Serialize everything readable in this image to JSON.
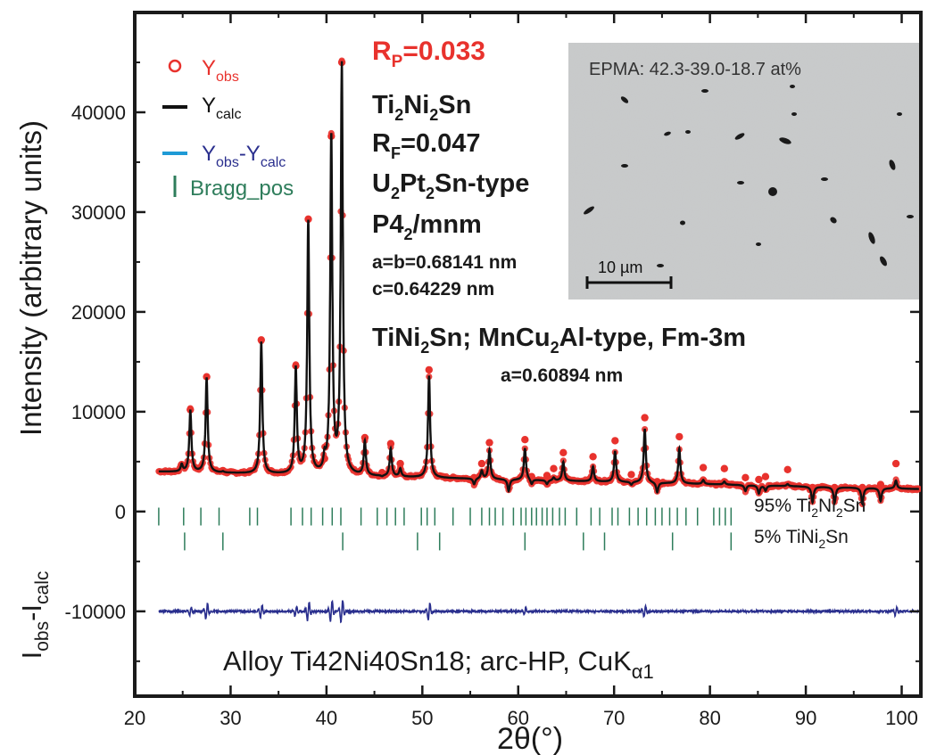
{
  "chart_data": {
    "type": "scatter",
    "xlabel": "2θ(°)",
    "ylabel": "Intensity (arbitrary units)",
    "ylabel_lower": {
      "main": "I",
      "sub1": "obs",
      "mid": "-I",
      "sub2": "calc"
    },
    "xlim": [
      20,
      102
    ],
    "ylim": [
      -18500,
      50000
    ],
    "x_ticks": [
      20,
      30,
      40,
      50,
      60,
      70,
      80,
      90,
      100
    ],
    "y_ticks": [
      -10000,
      0,
      10000,
      20000,
      30000,
      40000
    ],
    "background": 4000,
    "peaks": [
      {
        "x": 24.9,
        "y": 4700
      },
      {
        "x": 25.8,
        "y": 10200
      },
      {
        "x": 27.5,
        "y": 13500
      },
      {
        "x": 29.2,
        "y": 4100
      },
      {
        "x": 33.2,
        "y": 17200
      },
      {
        "x": 36.8,
        "y": 14600
      },
      {
        "x": 38.1,
        "y": 29300
      },
      {
        "x": 39.8,
        "y": 5300
      },
      {
        "x": 40.5,
        "y": 37600
      },
      {
        "x": 41.6,
        "y": 45000
      },
      {
        "x": 44.0,
        "y": 7400
      },
      {
        "x": 45.8,
        "y": 3900
      },
      {
        "x": 46.7,
        "y": 6800
      },
      {
        "x": 47.7,
        "y": 4800
      },
      {
        "x": 50.7,
        "y": 14200
      },
      {
        "x": 55.4,
        "y": 3400
      },
      {
        "x": 56.2,
        "y": 4800
      },
      {
        "x": 57.0,
        "y": 6900
      },
      {
        "x": 59.0,
        "y": 2800
      },
      {
        "x": 60.7,
        "y": 7200
      },
      {
        "x": 61.4,
        "y": 3500
      },
      {
        "x": 63.0,
        "y": 3600
      },
      {
        "x": 63.7,
        "y": 4300
      },
      {
        "x": 64.7,
        "y": 5900
      },
      {
        "x": 67.8,
        "y": 5500
      },
      {
        "x": 70.1,
        "y": 7100
      },
      {
        "x": 71.8,
        "y": 3700
      },
      {
        "x": 73.2,
        "y": 9400
      },
      {
        "x": 74.5,
        "y": 3000
      },
      {
        "x": 76.8,
        "y": 7500
      },
      {
        "x": 79.3,
        "y": 4400
      },
      {
        "x": 81.5,
        "y": 4300
      },
      {
        "x": 83.7,
        "y": 3400
      },
      {
        "x": 85.1,
        "y": 3200
      },
      {
        "x": 85.8,
        "y": 3500
      },
      {
        "x": 88.1,
        "y": 4200
      },
      {
        "x": 90.7,
        "y": 2400
      },
      {
        "x": 93.0,
        "y": 2400
      },
      {
        "x": 95.9,
        "y": 2400
      },
      {
        "x": 97.8,
        "y": 2700
      },
      {
        "x": 99.4,
        "y": 4800
      }
    ],
    "series": [
      {
        "name": "Yobs",
        "label_main": "Y",
        "label_sub": "obs",
        "color": "#e8322d",
        "marker": "circle"
      },
      {
        "name": "Ycalc",
        "label_main": "Y",
        "label_sub": "calc",
        "color": "#111111"
      },
      {
        "name": "Yobs-Ycalc",
        "label_main1": "Y",
        "label_sub1": "obs",
        "label_mid": "-Y",
        "label_sub2": "calc",
        "color": "#2a2f8e",
        "offset": -10000
      },
      {
        "name": "Bragg_pos",
        "color": "#2e7d5b"
      }
    ],
    "difference_spikes": [
      {
        "x": 25.8,
        "a": 500
      },
      {
        "x": 27.5,
        "a": 900
      },
      {
        "x": 33.2,
        "a": 700
      },
      {
        "x": 36.8,
        "a": 600
      },
      {
        "x": 38.1,
        "a": 1100
      },
      {
        "x": 40.5,
        "a": 1200
      },
      {
        "x": 41.6,
        "a": 1300
      },
      {
        "x": 50.7,
        "a": 1000
      },
      {
        "x": 60.7,
        "a": 400
      },
      {
        "x": 73.2,
        "a": 600
      },
      {
        "x": 99.4,
        "a": 500
      }
    ],
    "bragg_sets": [
      {
        "label_parts": [
          "95% Ti",
          "2",
          "Ni",
          "2",
          "Sn"
        ],
        "y": -500,
        "positions": [
          22.5,
          25.1,
          26.9,
          28.8,
          32.0,
          32.8,
          36.3,
          37.5,
          38.4,
          39.6,
          40.6,
          41.5,
          43.6,
          45.3,
          46.3,
          47.2,
          48.1,
          49.9,
          50.5,
          51.3,
          53.2,
          55.0,
          56.2,
          57.0,
          57.6,
          58.4,
          59.5,
          60.3,
          60.8,
          61.4,
          61.9,
          62.5,
          63.0,
          63.6,
          64.3,
          64.9,
          66.1,
          67.6,
          68.5,
          69.8,
          70.4,
          71.6,
          72.5,
          73.4,
          74.3,
          75.0,
          75.8,
          76.6,
          77.5,
          78.7,
          80.4,
          81.0,
          81.6,
          82.2
        ]
      },
      {
        "label_parts": [
          "5%  TiNi",
          "2",
          "Sn"
        ],
        "y": -3000,
        "positions": [
          25.2,
          29.2,
          41.7,
          49.5,
          51.8,
          60.7,
          66.8,
          69.0,
          76.1,
          82.2
        ]
      }
    ],
    "annotations": {
      "rp": {
        "main": "R",
        "sub": "P",
        "rest": "=0.033",
        "color": "#e8322d"
      },
      "phase1": {
        "parts": [
          "Ti",
          "2",
          "Ni",
          "2",
          "Sn"
        ]
      },
      "rf": {
        "main": "R",
        "sub": "F",
        "rest": "=0.047"
      },
      "type1": {
        "parts": [
          "U",
          "2",
          "Pt",
          "2",
          "Sn-type"
        ]
      },
      "space_group1": {
        "parts": [
          "P4",
          "2",
          "/mnm"
        ]
      },
      "lattice_ab": "a=b=0.68141 nm",
      "lattice_c": "c=0.64229 nm",
      "phase2": {
        "parts": [
          "TiNi",
          "2",
          "Sn; MnCu",
          "2",
          "Al-type, Fm-3m"
        ]
      },
      "lattice_a2": "a=0.60894 nm",
      "footer": {
        "main": "Alloy Ti42Ni40Sn18; arc-HP, CuK",
        "sub": "α1"
      }
    },
    "inset": {
      "label": "EPMA: 42.3-39.0-18.7 at%",
      "scale_label": "10 µm"
    },
    "legend_position": "top-left"
  }
}
